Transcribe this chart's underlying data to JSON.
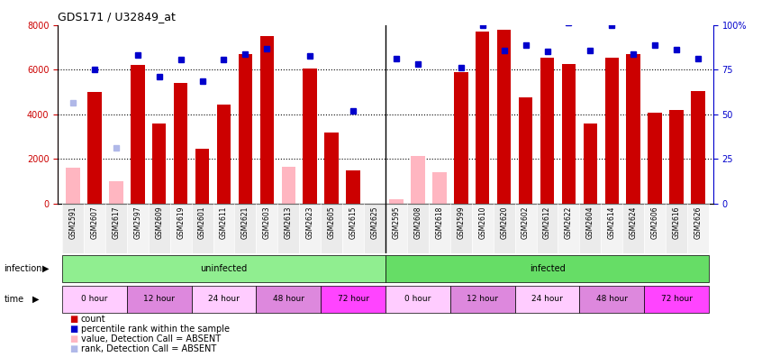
{
  "title": "GDS171 / U32849_at",
  "samples": [
    "GSM2591",
    "GSM2607",
    "GSM2617",
    "GSM2597",
    "GSM2609",
    "GSM2619",
    "GSM2601",
    "GSM2611",
    "GSM2621",
    "GSM2603",
    "GSM2613",
    "GSM2623",
    "GSM2605",
    "GSM2615",
    "GSM2625",
    "GSM2595",
    "GSM2608",
    "GSM2618",
    "GSM2599",
    "GSM2610",
    "GSM2620",
    "GSM2602",
    "GSM2612",
    "GSM2622",
    "GSM2604",
    "GSM2614",
    "GSM2624",
    "GSM2606",
    "GSM2616",
    "GSM2626"
  ],
  "bar_values": [
    null,
    5000,
    null,
    6200,
    3600,
    5400,
    2450,
    4450,
    6700,
    7500,
    null,
    6050,
    3200,
    1500,
    null,
    null,
    null,
    null,
    5900,
    7700,
    7800,
    4750,
    6550,
    6250,
    3600,
    6550,
    6700,
    4050,
    4200,
    5050
  ],
  "absent_bar_values": [
    1600,
    null,
    1000,
    null,
    null,
    null,
    null,
    null,
    null,
    null,
    1650,
    null,
    null,
    null,
    null,
    200,
    2150,
    1400,
    null,
    null,
    null,
    null,
    null,
    null,
    null,
    null,
    null,
    null,
    null,
    null
  ],
  "rank_values": [
    null,
    6000,
    null,
    6650,
    5700,
    6450,
    5500,
    6450,
    6700,
    6950,
    null,
    6600,
    null,
    4150,
    null,
    6500,
    6250,
    null,
    6100,
    8000,
    6850,
    7100,
    6800,
    8100,
    6850,
    8000,
    6700,
    7100,
    6900,
    6500
  ],
  "absent_rank_values": [
    4500,
    null,
    2500,
    null,
    null,
    null,
    null,
    null,
    null,
    null,
    null,
    null,
    null,
    null,
    null,
    null,
    null,
    null,
    null,
    null,
    null,
    null,
    null,
    null,
    null,
    null,
    null,
    null,
    null,
    null
  ],
  "bar_color": "#cc0000",
  "bar_absent_color": "#ffb6c1",
  "rank_color": "#0000cc",
  "rank_absent_color": "#b0b8e8",
  "ylim_left": [
    0,
    8000
  ],
  "ylim_right": [
    0,
    100
  ],
  "yticks_left": [
    0,
    2000,
    4000,
    6000,
    8000
  ],
  "yticks_right": [
    0,
    25,
    50,
    75,
    100
  ],
  "uninfected_color": "#90ee90",
  "infected_color": "#66dd66",
  "time_colors": [
    "#ffccff",
    "#dd88dd",
    "#ffccff",
    "#dd88dd",
    "#ff44ff",
    "#ffccff",
    "#dd88dd",
    "#ffccff",
    "#dd88dd",
    "#ff44ff"
  ],
  "time_labels": [
    "0 hour",
    "12 hour",
    "24 hour",
    "48 hour",
    "72 hour",
    "0 hour",
    "12 hour",
    "24 hour",
    "48 hour",
    "72 hour"
  ],
  "legend_items": [
    {
      "label": "count",
      "color": "#cc0000"
    },
    {
      "label": "percentile rank within the sample",
      "color": "#0000cc"
    },
    {
      "label": "value, Detection Call = ABSENT",
      "color": "#ffb6c1"
    },
    {
      "label": "rank, Detection Call = ABSENT",
      "color": "#b0b8e8"
    }
  ]
}
